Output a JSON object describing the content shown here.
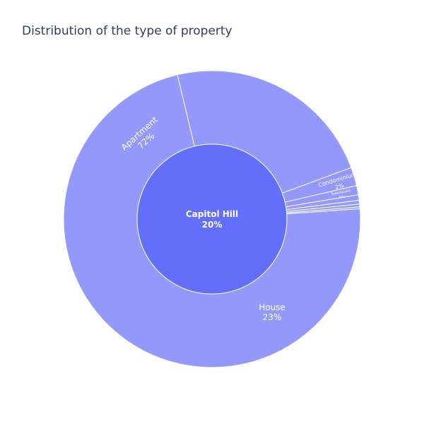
{
  "chart_data": {
    "type": "sunburst",
    "title": "Distribution of the type of property",
    "center": {
      "label": "Capitol Hill",
      "percent_label": "20%"
    },
    "segments": [
      {
        "name": "Apartment",
        "percent": 72,
        "label": "72%"
      },
      {
        "name": "House",
        "percent": 23,
        "label": "23%"
      },
      {
        "name": "Condominium",
        "percent": 2,
        "label": "2%"
      },
      {
        "name": "Townhouse",
        "percent": 1,
        "label": "1%"
      },
      {
        "name": "",
        "percent": 0.6,
        "label": ""
      },
      {
        "name": "",
        "percent": 0.4,
        "label": ""
      },
      {
        "name": "",
        "percent": 0.3,
        "label": ""
      },
      {
        "name": "",
        "percent": 0.2,
        "label": ""
      }
    ],
    "colors": {
      "center": "#636efa",
      "outer": "#9299fb",
      "border": "#ffffff"
    }
  }
}
